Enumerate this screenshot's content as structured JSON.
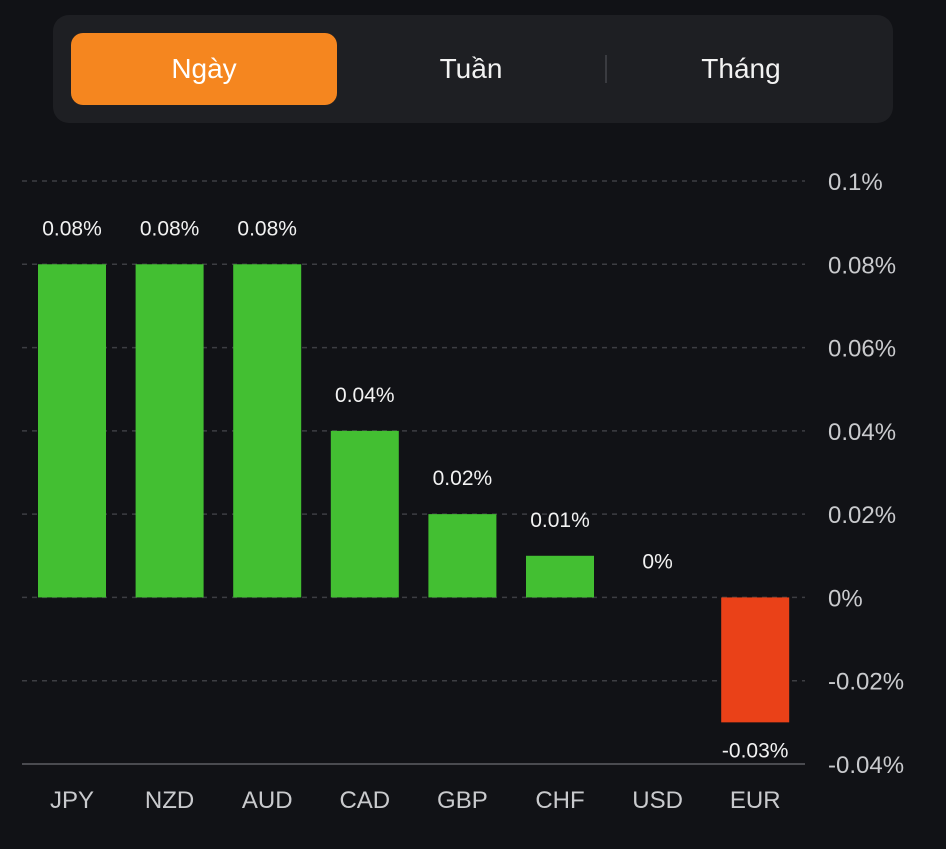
{
  "tabs": [
    {
      "label": "Ngày",
      "active": true
    },
    {
      "label": "Tuần",
      "active": false
    },
    {
      "label": "Tháng",
      "active": false
    }
  ],
  "colors": {
    "positive": "#43bf32",
    "negative": "#ea4118",
    "active_tab": "#f5861f",
    "background": "#111216"
  },
  "chart_data": {
    "type": "bar",
    "categories": [
      "JPY",
      "NZD",
      "AUD",
      "CAD",
      "GBP",
      "CHF",
      "USD",
      "EUR"
    ],
    "values": [
      0.08,
      0.08,
      0.08,
      0.04,
      0.02,
      0.01,
      0,
      -0.03
    ],
    "data_labels": [
      "0.08%",
      "0.08%",
      "0.08%",
      "0.04%",
      "0.02%",
      "0.01%",
      "0%",
      "-0.03%"
    ],
    "yticks": [
      0.1,
      0.08,
      0.06,
      0.04,
      0.02,
      0,
      -0.02,
      -0.04
    ],
    "ytick_labels": [
      "0.1%",
      "0.08%",
      "0.06%",
      "0.04%",
      "0.02%",
      "0%",
      "-0.02%",
      "-0.04%"
    ],
    "ylim": [
      -0.04,
      0.1
    ],
    "axis_position": "right",
    "grid": true
  }
}
